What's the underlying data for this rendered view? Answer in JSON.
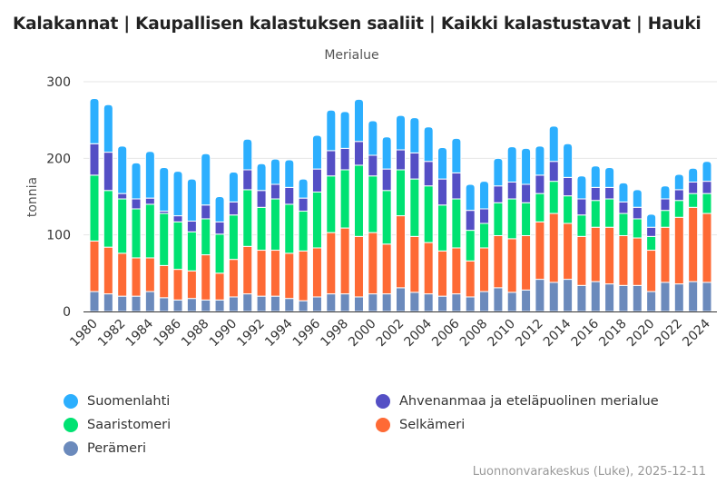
{
  "title": "Kalakannat | Kaupallisen kalastuksen saaliit | Kaikki kalastustavat | Hauki",
  "subtitle": "Merialue",
  "credit": "Luonnonvarakeskus (Luke), 2025-12-11",
  "chart_data": {
    "type": "bar",
    "stacked": true,
    "title": "Kalakannat | Kaupallisen kalastuksen saaliit | Kaikki kalastustavat | Hauki",
    "subtitle": "Merialue",
    "xlabel": "",
    "ylabel": "tonnia",
    "ylim": [
      0,
      300
    ],
    "yticks": [
      0,
      100,
      200,
      300
    ],
    "grid": true,
    "legend_position": "bottom",
    "categories": [
      1980,
      1981,
      1982,
      1983,
      1984,
      1985,
      1986,
      1987,
      1988,
      1989,
      1990,
      1991,
      1992,
      1993,
      1994,
      1995,
      1996,
      1997,
      1998,
      1999,
      2000,
      2001,
      2002,
      2003,
      2004,
      2005,
      2006,
      2007,
      2008,
      2009,
      2010,
      2011,
      2012,
      2013,
      2014,
      2015,
      2016,
      2017,
      2018,
      2019,
      2020,
      2021,
      2022,
      2023,
      2024
    ],
    "xtick_labels": [
      "1980",
      "1982",
      "1984",
      "1986",
      "1988",
      "1990",
      "1992",
      "1994",
      "1996",
      "1998",
      "2000",
      "2002",
      "2004",
      "2006",
      "2008",
      "2010",
      "2012",
      "2014",
      "2016",
      "2018",
      "2020",
      "2022",
      "2024"
    ],
    "series": [
      {
        "name": "Perämeri",
        "color": "#6b8abc",
        "values": [
          26,
          23,
          20,
          20,
          26,
          18,
          15,
          17,
          15,
          15,
          19,
          23,
          20,
          20,
          17,
          14,
          19,
          23,
          23,
          19,
          23,
          23,
          31,
          25,
          23,
          20,
          23,
          19,
          26,
          31,
          25,
          28,
          42,
          38,
          42,
          34,
          39,
          36,
          34,
          34,
          26,
          38,
          36,
          39,
          38
        ]
      },
      {
        "name": "Selkämeri",
        "color": "#fe6a35",
        "values": [
          66,
          61,
          56,
          50,
          44,
          42,
          40,
          36,
          59,
          35,
          49,
          62,
          60,
          60,
          59,
          65,
          64,
          80,
          86,
          79,
          80,
          65,
          94,
          73,
          67,
          59,
          60,
          47,
          57,
          68,
          70,
          71,
          75,
          90,
          73,
          64,
          71,
          74,
          65,
          62,
          54,
          72,
          87,
          97,
          90
        ]
      },
      {
        "name": "Saaristomeri",
        "color": "#00e272",
        "values": [
          86,
          74,
          71,
          64,
          70,
          68,
          62,
          51,
          47,
          51,
          58,
          74,
          56,
          67,
          64,
          52,
          73,
          74,
          76,
          93,
          74,
          70,
          60,
          75,
          74,
          60,
          64,
          40,
          32,
          43,
          52,
          43,
          37,
          42,
          36,
          28,
          35,
          37,
          29,
          25,
          18,
          22,
          22,
          18,
          26
        ]
      },
      {
        "name": "Ahvenanmaa ja eteläpuolinen merialue",
        "color": "#544fc5",
        "values": [
          41,
          50,
          7,
          13,
          8,
          3,
          8,
          14,
          18,
          16,
          17,
          26,
          22,
          19,
          22,
          17,
          30,
          33,
          28,
          31,
          27,
          28,
          26,
          34,
          32,
          34,
          34,
          26,
          19,
          22,
          22,
          24,
          24,
          26,
          24,
          21,
          17,
          15,
          15,
          15,
          12,
          15,
          14,
          15,
          16
        ]
      },
      {
        "name": "Suomenlahti",
        "color": "#2caffe",
        "values": [
          59,
          62,
          62,
          47,
          61,
          57,
          58,
          55,
          67,
          33,
          39,
          40,
          35,
          33,
          36,
          25,
          44,
          53,
          48,
          55,
          45,
          42,
          45,
          46,
          45,
          41,
          45,
          34,
          36,
          36,
          46,
          47,
          38,
          46,
          44,
          30,
          28,
          26,
          25,
          23,
          17,
          17,
          20,
          18,
          26
        ]
      }
    ]
  },
  "legend": [
    {
      "label": "Suomenlahti",
      "color": "#2caffe"
    },
    {
      "label": "Ahvenanmaa ja eteläpuolinen merialue",
      "color": "#544fc5"
    },
    {
      "label": "Saaristomeri",
      "color": "#00e272"
    },
    {
      "label": "Selkämeri",
      "color": "#fe6a35"
    },
    {
      "label": "Perämeri",
      "color": "#6b8abc"
    }
  ]
}
